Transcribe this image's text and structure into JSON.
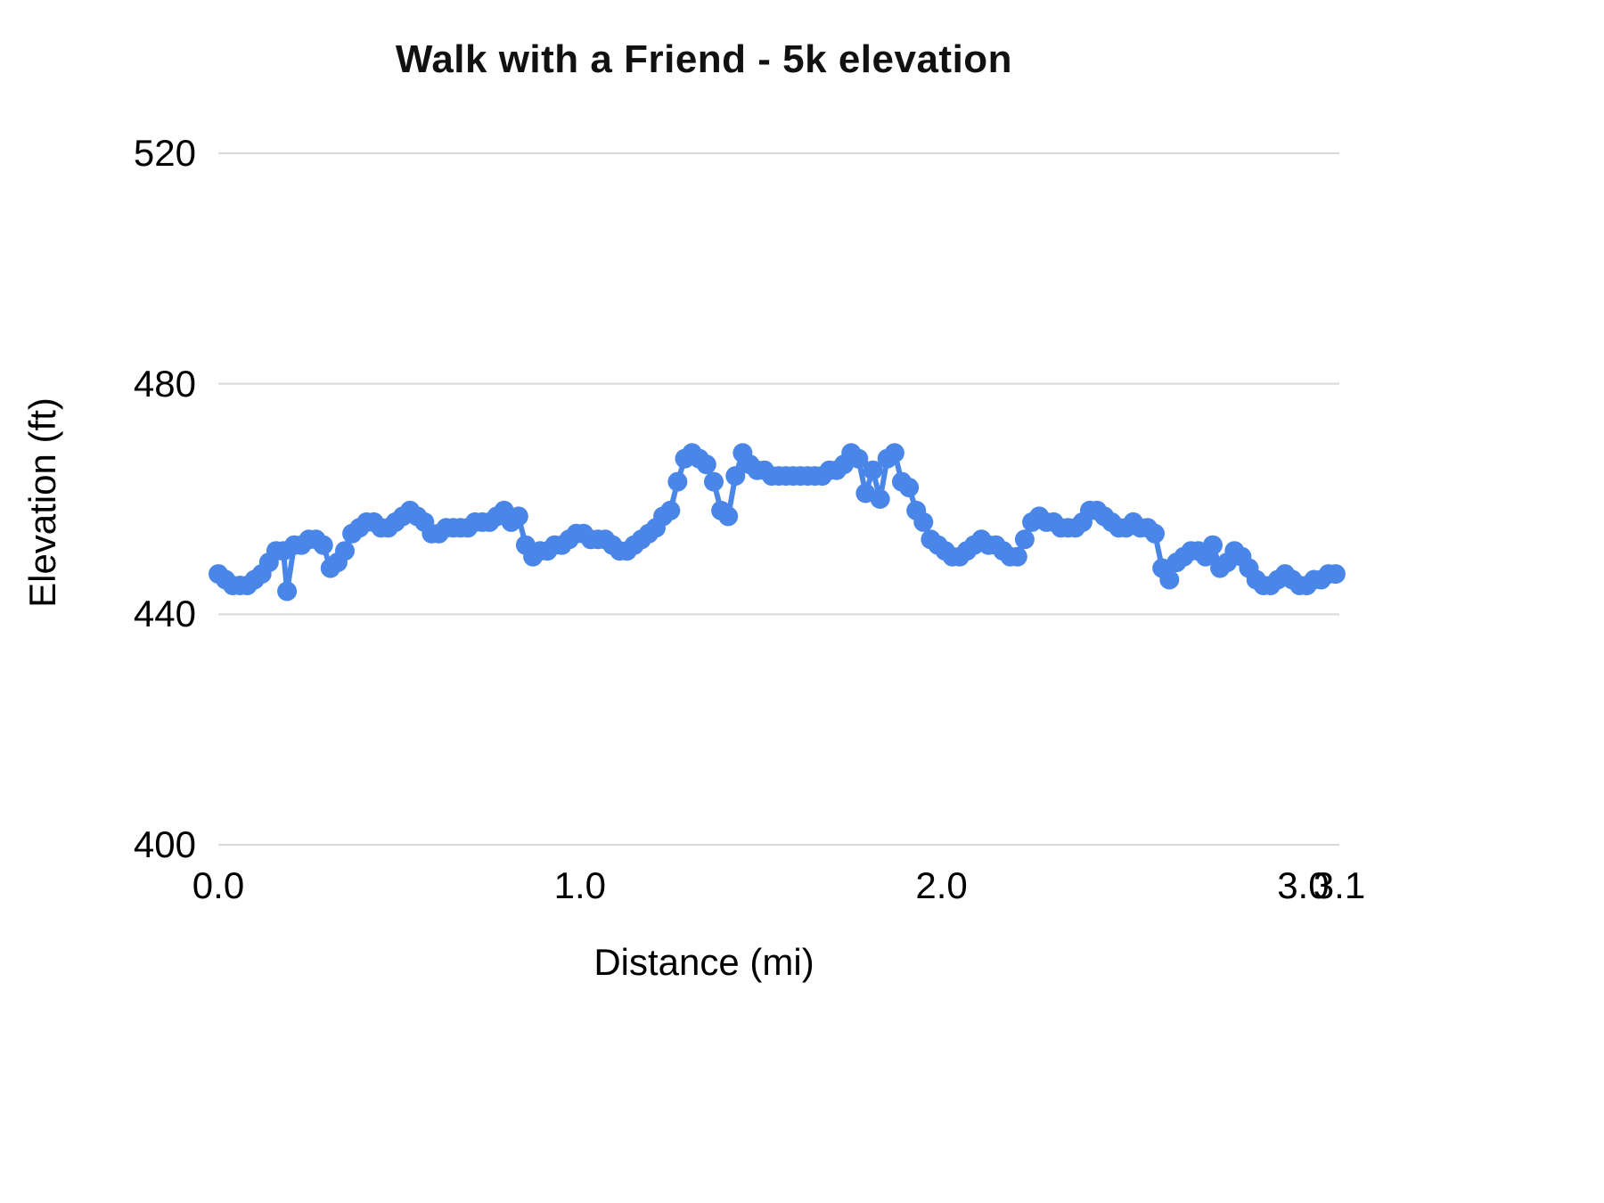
{
  "title": "Walk with a Friend - 5k elevation",
  "colors": {
    "series": "#4a86e8",
    "gridline": "#d9d9d9",
    "text": "#000000",
    "background": "#ffffff"
  },
  "chart_data": {
    "type": "line",
    "title": "Walk with a Friend - 5k elevation",
    "xlabel": "Distance (mi)",
    "ylabel": "Elevation (ft)",
    "xlim": [
      0,
      3.1
    ],
    "ylim": [
      400,
      520
    ],
    "x_ticks": [
      {
        "value": 0.0,
        "label": "0.0"
      },
      {
        "value": 1.0,
        "label": "1.0"
      },
      {
        "value": 2.0,
        "label": "2.0"
      },
      {
        "value": 3.0,
        "label": "3.0"
      },
      {
        "value": 3.1,
        "label": "3.1"
      }
    ],
    "y_ticks": [
      {
        "value": 400,
        "label": "400"
      },
      {
        "value": 440,
        "label": "440"
      },
      {
        "value": 480,
        "label": "480"
      },
      {
        "value": 520,
        "label": "520"
      }
    ],
    "grid": "horizontal",
    "legend": "none",
    "series": [
      {
        "name": "Elevation",
        "points": [
          [
            0.0,
            447
          ],
          [
            0.02,
            446
          ],
          [
            0.04,
            445
          ],
          [
            0.06,
            445
          ],
          [
            0.08,
            445
          ],
          [
            0.1,
            446
          ],
          [
            0.12,
            447
          ],
          [
            0.14,
            449
          ],
          [
            0.16,
            451
          ],
          [
            0.18,
            451
          ],
          [
            0.19,
            444
          ],
          [
            0.21,
            452
          ],
          [
            0.23,
            452
          ],
          [
            0.25,
            453
          ],
          [
            0.27,
            453
          ],
          [
            0.29,
            452
          ],
          [
            0.31,
            448
          ],
          [
            0.33,
            449
          ],
          [
            0.35,
            451
          ],
          [
            0.37,
            454
          ],
          [
            0.39,
            455
          ],
          [
            0.41,
            456
          ],
          [
            0.43,
            456
          ],
          [
            0.45,
            455
          ],
          [
            0.47,
            455
          ],
          [
            0.49,
            456
          ],
          [
            0.51,
            457
          ],
          [
            0.53,
            458
          ],
          [
            0.55,
            457
          ],
          [
            0.57,
            456
          ],
          [
            0.59,
            454
          ],
          [
            0.61,
            454
          ],
          [
            0.63,
            455
          ],
          [
            0.65,
            455
          ],
          [
            0.67,
            455
          ],
          [
            0.69,
            455
          ],
          [
            0.71,
            456
          ],
          [
            0.73,
            456
          ],
          [
            0.75,
            456
          ],
          [
            0.77,
            457
          ],
          [
            0.79,
            458
          ],
          [
            0.81,
            456
          ],
          [
            0.83,
            457
          ],
          [
            0.85,
            452
          ],
          [
            0.87,
            450
          ],
          [
            0.89,
            451
          ],
          [
            0.91,
            451
          ],
          [
            0.93,
            452
          ],
          [
            0.95,
            452
          ],
          [
            0.97,
            453
          ],
          [
            0.99,
            454
          ],
          [
            1.01,
            454
          ],
          [
            1.03,
            453
          ],
          [
            1.05,
            453
          ],
          [
            1.07,
            453
          ],
          [
            1.09,
            452
          ],
          [
            1.11,
            451
          ],
          [
            1.13,
            451
          ],
          [
            1.15,
            452
          ],
          [
            1.17,
            453
          ],
          [
            1.19,
            454
          ],
          [
            1.21,
            455
          ],
          [
            1.23,
            457
          ],
          [
            1.25,
            458
          ],
          [
            1.27,
            463
          ],
          [
            1.29,
            467
          ],
          [
            1.31,
            468
          ],
          [
            1.33,
            467
          ],
          [
            1.35,
            466
          ],
          [
            1.37,
            463
          ],
          [
            1.39,
            458
          ],
          [
            1.41,
            457
          ],
          [
            1.43,
            464
          ],
          [
            1.45,
            468
          ],
          [
            1.47,
            466
          ],
          [
            1.49,
            465
          ],
          [
            1.51,
            465
          ],
          [
            1.53,
            464
          ],
          [
            1.55,
            464
          ],
          [
            1.57,
            464
          ],
          [
            1.59,
            464
          ],
          [
            1.61,
            464
          ],
          [
            1.63,
            464
          ],
          [
            1.65,
            464
          ],
          [
            1.67,
            464
          ],
          [
            1.69,
            465
          ],
          [
            1.71,
            465
          ],
          [
            1.73,
            466
          ],
          [
            1.75,
            468
          ],
          [
            1.77,
            467
          ],
          [
            1.79,
            461
          ],
          [
            1.81,
            465
          ],
          [
            1.83,
            460
          ],
          [
            1.85,
            467
          ],
          [
            1.87,
            468
          ],
          [
            1.89,
            463
          ],
          [
            1.91,
            462
          ],
          [
            1.93,
            458
          ],
          [
            1.95,
            456
          ],
          [
            1.97,
            453
          ],
          [
            1.99,
            452
          ],
          [
            2.01,
            451
          ],
          [
            2.03,
            450
          ],
          [
            2.05,
            450
          ],
          [
            2.07,
            451
          ],
          [
            2.09,
            452
          ],
          [
            2.11,
            453
          ],
          [
            2.13,
            452
          ],
          [
            2.15,
            452
          ],
          [
            2.17,
            451
          ],
          [
            2.19,
            450
          ],
          [
            2.21,
            450
          ],
          [
            2.23,
            453
          ],
          [
            2.25,
            456
          ],
          [
            2.27,
            457
          ],
          [
            2.29,
            456
          ],
          [
            2.31,
            456
          ],
          [
            2.33,
            455
          ],
          [
            2.35,
            455
          ],
          [
            2.37,
            455
          ],
          [
            2.39,
            456
          ],
          [
            2.41,
            458
          ],
          [
            2.43,
            458
          ],
          [
            2.45,
            457
          ],
          [
            2.47,
            456
          ],
          [
            2.49,
            455
          ],
          [
            2.51,
            455
          ],
          [
            2.53,
            456
          ],
          [
            2.55,
            455
          ],
          [
            2.57,
            455
          ],
          [
            2.59,
            454
          ],
          [
            2.61,
            448
          ],
          [
            2.63,
            446
          ],
          [
            2.65,
            449
          ],
          [
            2.67,
            450
          ],
          [
            2.69,
            451
          ],
          [
            2.71,
            451
          ],
          [
            2.73,
            450
          ],
          [
            2.75,
            452
          ],
          [
            2.77,
            448
          ],
          [
            2.79,
            449
          ],
          [
            2.81,
            451
          ],
          [
            2.83,
            450
          ],
          [
            2.85,
            448
          ],
          [
            2.87,
            446
          ],
          [
            2.89,
            445
          ],
          [
            2.91,
            445
          ],
          [
            2.93,
            446
          ],
          [
            2.95,
            447
          ],
          [
            2.97,
            446
          ],
          [
            2.99,
            445
          ],
          [
            3.01,
            445
          ],
          [
            3.03,
            446
          ],
          [
            3.05,
            446
          ],
          [
            3.07,
            447
          ],
          [
            3.09,
            447
          ]
        ]
      }
    ]
  },
  "layout_note": ""
}
